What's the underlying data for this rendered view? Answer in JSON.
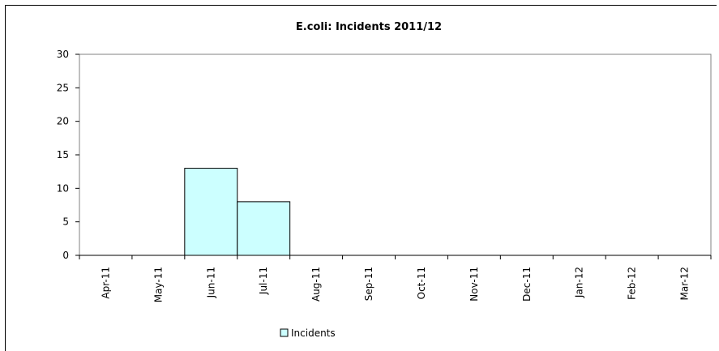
{
  "chart_data": {
    "type": "bar",
    "title": "E.coli: Incidents 2011/12",
    "xlabel": "",
    "ylabel": "",
    "categories": [
      "Apr-11",
      "May-11",
      "Jun-11",
      "Jul-11",
      "Aug-11",
      "Sep-11",
      "Oct-11",
      "Nov-11",
      "Dec-11",
      "Jan-12",
      "Feb-12",
      "Mar-12"
    ],
    "series": [
      {
        "name": "Incidents",
        "values": [
          0,
          0,
          13,
          8,
          0,
          0,
          0,
          0,
          0,
          0,
          0,
          0
        ],
        "color": "#ccffff"
      }
    ],
    "ylim": [
      0,
      30
    ],
    "yticks": [
      0,
      5,
      10,
      15,
      20,
      25,
      30
    ],
    "grid": false,
    "legend_position": "bottom-center"
  }
}
